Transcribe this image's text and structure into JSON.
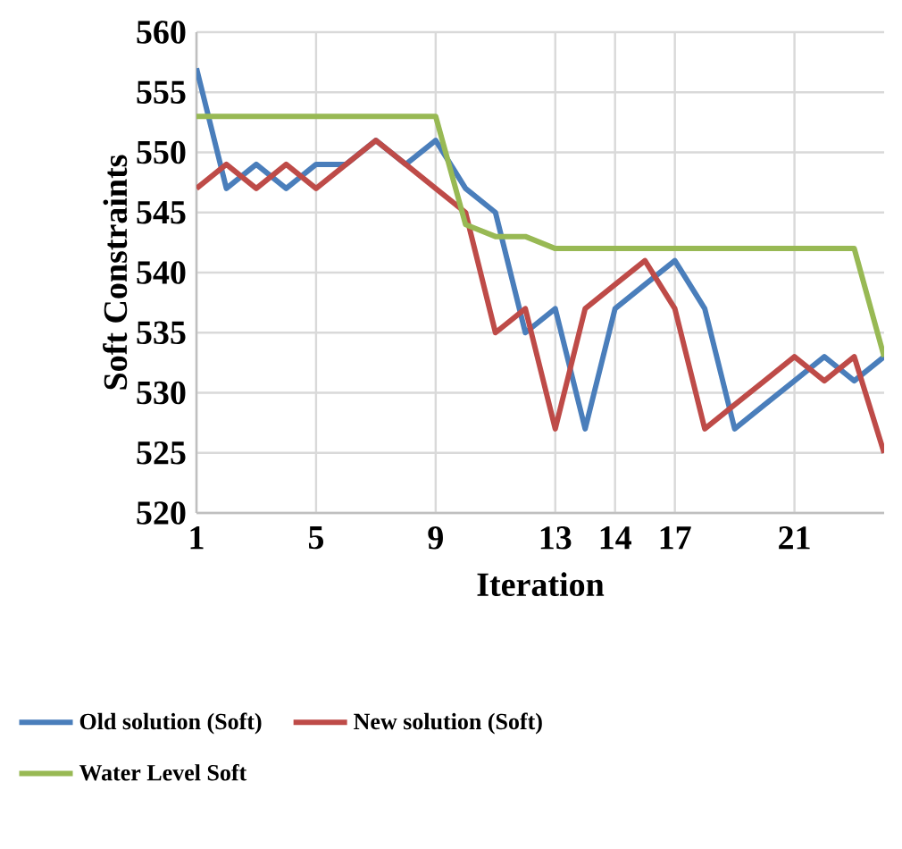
{
  "chart_data": {
    "type": "line",
    "xlabel": "Iteration",
    "ylabel": "Soft Constraints",
    "categories": [
      "1",
      null,
      null,
      null,
      "5",
      null,
      null,
      null,
      "9",
      null,
      null,
      null,
      "13",
      null,
      "14",
      null,
      "17",
      null,
      null,
      null,
      "21",
      null,
      null,
      null
    ],
    "ylim": [
      520,
      560
    ],
    "yticks": [
      520,
      525,
      530,
      535,
      540,
      545,
      550,
      555,
      560
    ],
    "grid": true,
    "legend": "bottom",
    "marker": "none",
    "line_style": "solid",
    "series": [
      {
        "name": "Old solution (Soft)",
        "color": "#4a7ebb",
        "values": [
          557,
          547,
          549,
          547,
          549,
          549,
          551,
          549,
          551,
          547,
          545,
          535,
          537,
          527,
          537,
          539,
          541,
          537,
          527,
          529,
          531,
          533,
          531,
          533
        ]
      },
      {
        "name": "New  solution (Soft)",
        "color": "#be4b48",
        "values": [
          547,
          549,
          547,
          549,
          547,
          549,
          551,
          549,
          547,
          545,
          535,
          537,
          527,
          537,
          539,
          541,
          537,
          527,
          529,
          531,
          533,
          531,
          533,
          525
        ]
      },
      {
        "name": "Water Level Soft",
        "color": "#98b954",
        "values": [
          553,
          553,
          553,
          553,
          553,
          553,
          553,
          553,
          553,
          544,
          543,
          543,
          542,
          542,
          542,
          542,
          542,
          542,
          542,
          542,
          542,
          542,
          542,
          533
        ]
      }
    ]
  }
}
